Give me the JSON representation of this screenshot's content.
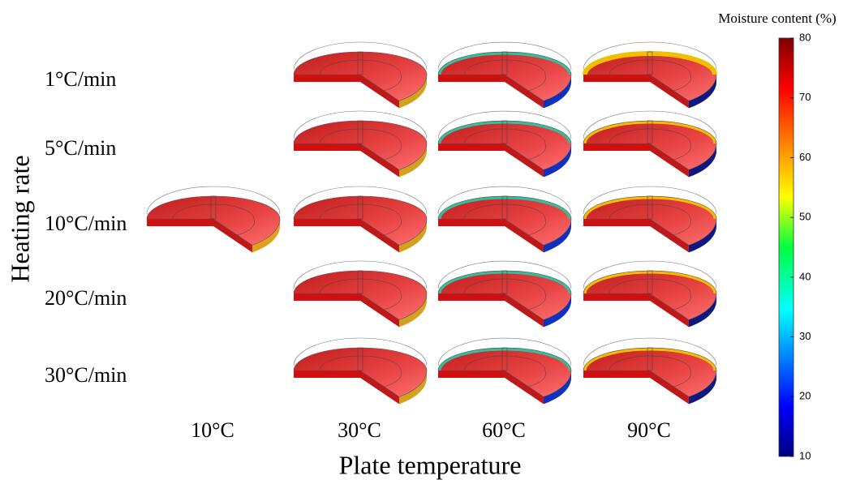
{
  "row_axis_title": "Heating rate",
  "column_axis_title": "Plate temperature",
  "rows": [
    "1°C/min",
    "5°C/min",
    "10°C/min",
    "20°C/min",
    "30°C/min"
  ],
  "columns": [
    "10°C",
    "30°C",
    "60°C",
    "90°C"
  ],
  "colorbar": {
    "title": "Moisture content (%)",
    "range": [
      10,
      80
    ],
    "ticks": [
      10,
      20,
      30,
      40,
      50,
      60,
      70,
      80
    ]
  }
}
